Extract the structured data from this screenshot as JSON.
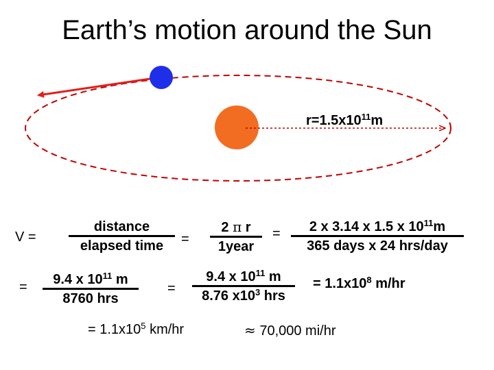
{
  "title": "Earth’s motion around the Sun",
  "orbit": {
    "radius_label": "r=1.5x10",
    "radius_exp": "11",
    "radius_unit": "m",
    "colors": {
      "sun": "#f26d21",
      "earth": "#1f2ee8",
      "orbit": "#c00000",
      "radius_line": "#c00000",
      "velocity_arrow": "#e0201a"
    }
  },
  "eq1": {
    "lhs": "V =",
    "num1": "distance",
    "den1": "elapsed time",
    "eq_a": "=",
    "num2_prefix": "2 ",
    "num2_pi": "π",
    "num2_suffix": " r",
    "den2": "1year",
    "eq_b": "=",
    "num3": "2 x 3.14 x 1.5 x 10",
    "num3_exp": "11",
    "num3_unit": "m",
    "den3": "365 days x 24 hrs/day"
  },
  "eq2": {
    "lead": "=",
    "num1": "9.4 x 10",
    "num1_exp": "11",
    "num1_unit": " m",
    "den1": "8760 hrs",
    "eq_a": "=",
    "num2": "9.4 x 10",
    "num2_exp": "11",
    "num2_unit": " m",
    "den2": "8.76 x10",
    "den2_exp": "3",
    "den2_unit": " hrs",
    "result": "= 1.1x10",
    "result_exp": "8",
    "result_unit": " m/hr"
  },
  "eq3": {
    "km": "= 1.1x10",
    "km_exp": "5",
    "km_unit": " km/hr",
    "approx": "≈",
    "mi": " 70,000 mi/hr"
  }
}
